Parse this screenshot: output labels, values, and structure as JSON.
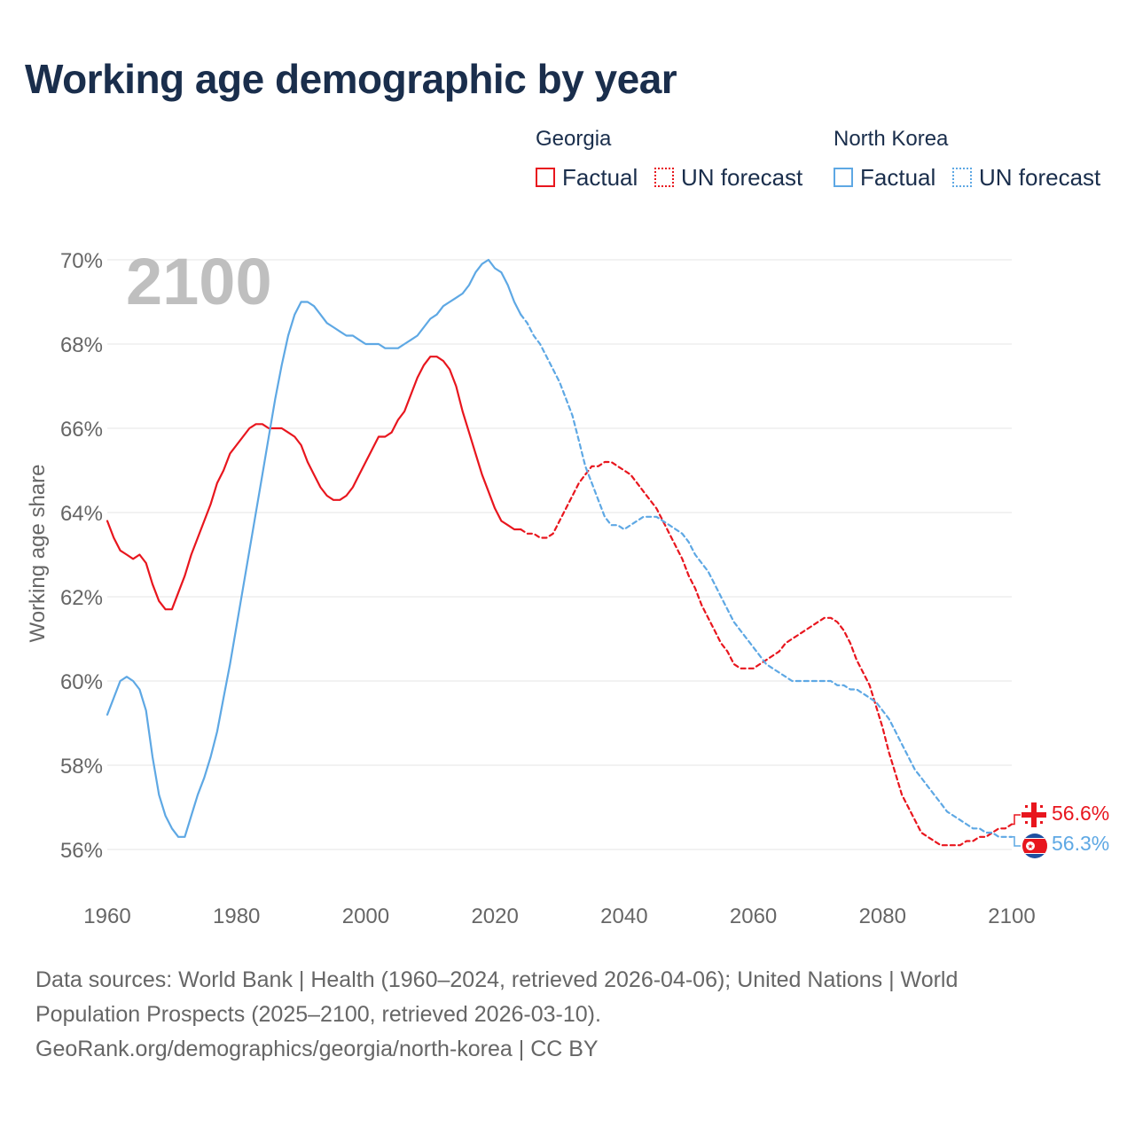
{
  "title": "Working age demographic by year",
  "legend": {
    "georgia": {
      "country": "Georgia",
      "factual": "Factual",
      "forecast": "UN forecast",
      "color": "#e8161e"
    },
    "north_korea": {
      "country": "North Korea",
      "factual": "Factual",
      "forecast": "UN forecast",
      "color": "#5ea8e4"
    }
  },
  "year_watermark": "2100",
  "footer": {
    "line1": "Data sources: World Bank | Health (1960–2024, retrieved 2026-04-06); United Nations | World",
    "line2": "Population Prospects (2025–2100, retrieved 2026-03-10).",
    "line3": "GeoRank.org/demographics/georgia/north-korea | CC BY"
  },
  "chart_data": {
    "type": "line",
    "title": "Working age demographic by year",
    "xlabel": "",
    "ylabel": "Working age share",
    "xlim": [
      1960,
      2100
    ],
    "ylim": [
      55,
      70
    ],
    "x_ticks": [
      1960,
      1980,
      2000,
      2020,
      2040,
      2060,
      2080,
      2100
    ],
    "y_ticks": [
      56,
      58,
      60,
      62,
      64,
      66,
      68,
      70
    ],
    "y_tick_labels": [
      "56%",
      "58%",
      "60%",
      "62%",
      "64%",
      "66%",
      "68%",
      "70%"
    ],
    "grid": true,
    "series": [
      {
        "name": "Georgia",
        "color": "#e8161e",
        "end_label": "56.6%",
        "factual": [
          [
            1960,
            63.8
          ],
          [
            1961,
            63.4
          ],
          [
            1962,
            63.1
          ],
          [
            1963,
            63.0
          ],
          [
            1964,
            62.9
          ],
          [
            1965,
            63.0
          ],
          [
            1966,
            62.8
          ],
          [
            1967,
            62.3
          ],
          [
            1968,
            61.9
          ],
          [
            1969,
            61.7
          ],
          [
            1970,
            61.7
          ],
          [
            1971,
            62.1
          ],
          [
            1972,
            62.5
          ],
          [
            1973,
            63.0
          ],
          [
            1974,
            63.4
          ],
          [
            1975,
            63.8
          ],
          [
            1976,
            64.2
          ],
          [
            1977,
            64.7
          ],
          [
            1978,
            65.0
          ],
          [
            1979,
            65.4
          ],
          [
            1980,
            65.6
          ],
          [
            1981,
            65.8
          ],
          [
            1982,
            66.0
          ],
          [
            1983,
            66.1
          ],
          [
            1984,
            66.1
          ],
          [
            1985,
            66.0
          ],
          [
            1986,
            66.0
          ],
          [
            1987,
            66.0
          ],
          [
            1988,
            65.9
          ],
          [
            1989,
            65.8
          ],
          [
            1990,
            65.6
          ],
          [
            1991,
            65.2
          ],
          [
            1992,
            64.9
          ],
          [
            1993,
            64.6
          ],
          [
            1994,
            64.4
          ],
          [
            1995,
            64.3
          ],
          [
            1996,
            64.3
          ],
          [
            1997,
            64.4
          ],
          [
            1998,
            64.6
          ],
          [
            1999,
            64.9
          ],
          [
            2000,
            65.2
          ],
          [
            2001,
            65.5
          ],
          [
            2002,
            65.8
          ],
          [
            2003,
            65.8
          ],
          [
            2004,
            65.9
          ],
          [
            2005,
            66.2
          ],
          [
            2006,
            66.4
          ],
          [
            2007,
            66.8
          ],
          [
            2008,
            67.2
          ],
          [
            2009,
            67.5
          ],
          [
            2010,
            67.7
          ],
          [
            2011,
            67.7
          ],
          [
            2012,
            67.6
          ],
          [
            2013,
            67.4
          ],
          [
            2014,
            67.0
          ],
          [
            2015,
            66.4
          ],
          [
            2016,
            65.9
          ],
          [
            2017,
            65.4
          ],
          [
            2018,
            64.9
          ],
          [
            2019,
            64.5
          ],
          [
            2020,
            64.1
          ],
          [
            2021,
            63.8
          ],
          [
            2022,
            63.7
          ],
          [
            2023,
            63.6
          ],
          [
            2024,
            63.6
          ]
        ],
        "forecast": [
          [
            2024,
            63.6
          ],
          [
            2025,
            63.5
          ],
          [
            2026,
            63.5
          ],
          [
            2027,
            63.4
          ],
          [
            2028,
            63.4
          ],
          [
            2029,
            63.5
          ],
          [
            2030,
            63.8
          ],
          [
            2031,
            64.1
          ],
          [
            2032,
            64.4
          ],
          [
            2033,
            64.7
          ],
          [
            2034,
            64.9
          ],
          [
            2035,
            65.1
          ],
          [
            2036,
            65.1
          ],
          [
            2037,
            65.2
          ],
          [
            2038,
            65.2
          ],
          [
            2039,
            65.1
          ],
          [
            2040,
            65.0
          ],
          [
            2041,
            64.9
          ],
          [
            2042,
            64.7
          ],
          [
            2043,
            64.5
          ],
          [
            2044,
            64.3
          ],
          [
            2045,
            64.1
          ],
          [
            2046,
            63.8
          ],
          [
            2047,
            63.5
          ],
          [
            2048,
            63.2
          ],
          [
            2049,
            62.9
          ],
          [
            2050,
            62.5
          ],
          [
            2051,
            62.2
          ],
          [
            2052,
            61.8
          ],
          [
            2053,
            61.5
          ],
          [
            2054,
            61.2
          ],
          [
            2055,
            60.9
          ],
          [
            2056,
            60.7
          ],
          [
            2057,
            60.4
          ],
          [
            2058,
            60.3
          ],
          [
            2059,
            60.3
          ],
          [
            2060,
            60.3
          ],
          [
            2061,
            60.4
          ],
          [
            2062,
            60.5
          ],
          [
            2063,
            60.6
          ],
          [
            2064,
            60.7
          ],
          [
            2065,
            60.9
          ],
          [
            2066,
            61.0
          ],
          [
            2067,
            61.1
          ],
          [
            2068,
            61.2
          ],
          [
            2069,
            61.3
          ],
          [
            2070,
            61.4
          ],
          [
            2071,
            61.5
          ],
          [
            2072,
            61.5
          ],
          [
            2073,
            61.4
          ],
          [
            2074,
            61.2
          ],
          [
            2075,
            60.9
          ],
          [
            2076,
            60.5
          ],
          [
            2077,
            60.2
          ],
          [
            2078,
            59.9
          ],
          [
            2079,
            59.4
          ],
          [
            2080,
            58.9
          ],
          [
            2081,
            58.3
          ],
          [
            2082,
            57.8
          ],
          [
            2083,
            57.3
          ],
          [
            2084,
            57.0
          ],
          [
            2085,
            56.7
          ],
          [
            2086,
            56.4
          ],
          [
            2087,
            56.3
          ],
          [
            2088,
            56.2
          ],
          [
            2089,
            56.1
          ],
          [
            2090,
            56.1
          ],
          [
            2091,
            56.1
          ],
          [
            2092,
            56.1
          ],
          [
            2093,
            56.2
          ],
          [
            2094,
            56.2
          ],
          [
            2095,
            56.3
          ],
          [
            2096,
            56.3
          ],
          [
            2097,
            56.4
          ],
          [
            2098,
            56.5
          ],
          [
            2099,
            56.5
          ],
          [
            2100,
            56.6
          ]
        ]
      },
      {
        "name": "North Korea",
        "color": "#5ea8e4",
        "end_label": "56.3%",
        "factual": [
          [
            1960,
            59.2
          ],
          [
            1961,
            59.6
          ],
          [
            1962,
            60.0
          ],
          [
            1963,
            60.1
          ],
          [
            1964,
            60.0
          ],
          [
            1965,
            59.8
          ],
          [
            1966,
            59.3
          ],
          [
            1967,
            58.2
          ],
          [
            1968,
            57.3
          ],
          [
            1969,
            56.8
          ],
          [
            1970,
            56.5
          ],
          [
            1971,
            56.3
          ],
          [
            1972,
            56.3
          ],
          [
            1973,
            56.8
          ],
          [
            1974,
            57.3
          ],
          [
            1975,
            57.7
          ],
          [
            1976,
            58.2
          ],
          [
            1977,
            58.8
          ],
          [
            1978,
            59.6
          ],
          [
            1979,
            60.4
          ],
          [
            1980,
            61.3
          ],
          [
            1981,
            62.2
          ],
          [
            1982,
            63.1
          ],
          [
            1983,
            64.0
          ],
          [
            1984,
            64.9
          ],
          [
            1985,
            65.8
          ],
          [
            1986,
            66.7
          ],
          [
            1987,
            67.5
          ],
          [
            1988,
            68.2
          ],
          [
            1989,
            68.7
          ],
          [
            1990,
            69.0
          ],
          [
            1991,
            69.0
          ],
          [
            1992,
            68.9
          ],
          [
            1993,
            68.7
          ],
          [
            1994,
            68.5
          ],
          [
            1995,
            68.4
          ],
          [
            1996,
            68.3
          ],
          [
            1997,
            68.2
          ],
          [
            1998,
            68.2
          ],
          [
            1999,
            68.1
          ],
          [
            2000,
            68.0
          ],
          [
            2001,
            68.0
          ],
          [
            2002,
            68.0
          ],
          [
            2003,
            67.9
          ],
          [
            2004,
            67.9
          ],
          [
            2005,
            67.9
          ],
          [
            2006,
            68.0
          ],
          [
            2007,
            68.1
          ],
          [
            2008,
            68.2
          ],
          [
            2009,
            68.4
          ],
          [
            2010,
            68.6
          ],
          [
            2011,
            68.7
          ],
          [
            2012,
            68.9
          ],
          [
            2013,
            69.0
          ],
          [
            2014,
            69.1
          ],
          [
            2015,
            69.2
          ],
          [
            2016,
            69.4
          ],
          [
            2017,
            69.7
          ],
          [
            2018,
            69.9
          ],
          [
            2019,
            70.0
          ],
          [
            2020,
            69.8
          ],
          [
            2021,
            69.7
          ],
          [
            2022,
            69.4
          ],
          [
            2023,
            69.0
          ],
          [
            2024,
            68.7
          ]
        ],
        "forecast": [
          [
            2024,
            68.7
          ],
          [
            2025,
            68.5
          ],
          [
            2026,
            68.2
          ],
          [
            2027,
            68.0
          ],
          [
            2028,
            67.7
          ],
          [
            2029,
            67.4
          ],
          [
            2030,
            67.1
          ],
          [
            2031,
            66.7
          ],
          [
            2032,
            66.3
          ],
          [
            2033,
            65.7
          ],
          [
            2034,
            65.1
          ],
          [
            2035,
            64.7
          ],
          [
            2036,
            64.3
          ],
          [
            2037,
            63.9
          ],
          [
            2038,
            63.7
          ],
          [
            2039,
            63.7
          ],
          [
            2040,
            63.6
          ],
          [
            2041,
            63.7
          ],
          [
            2042,
            63.8
          ],
          [
            2043,
            63.9
          ],
          [
            2044,
            63.9
          ],
          [
            2045,
            63.9
          ],
          [
            2046,
            63.8
          ],
          [
            2047,
            63.7
          ],
          [
            2048,
            63.6
          ],
          [
            2049,
            63.5
          ],
          [
            2050,
            63.3
          ],
          [
            2051,
            63.0
          ],
          [
            2052,
            62.8
          ],
          [
            2053,
            62.6
          ],
          [
            2054,
            62.3
          ],
          [
            2055,
            62.0
          ],
          [
            2056,
            61.7
          ],
          [
            2057,
            61.4
          ],
          [
            2058,
            61.2
          ],
          [
            2059,
            61.0
          ],
          [
            2060,
            60.8
          ],
          [
            2061,
            60.6
          ],
          [
            2062,
            60.4
          ],
          [
            2063,
            60.3
          ],
          [
            2064,
            60.2
          ],
          [
            2065,
            60.1
          ],
          [
            2066,
            60.0
          ],
          [
            2067,
            60.0
          ],
          [
            2068,
            60.0
          ],
          [
            2069,
            60.0
          ],
          [
            2070,
            60.0
          ],
          [
            2071,
            60.0
          ],
          [
            2072,
            60.0
          ],
          [
            2073,
            59.9
          ],
          [
            2074,
            59.9
          ],
          [
            2075,
            59.8
          ],
          [
            2076,
            59.8
          ],
          [
            2077,
            59.7
          ],
          [
            2078,
            59.6
          ],
          [
            2079,
            59.5
          ],
          [
            2080,
            59.3
          ],
          [
            2081,
            59.1
          ],
          [
            2082,
            58.8
          ],
          [
            2083,
            58.5
          ],
          [
            2084,
            58.2
          ],
          [
            2085,
            57.9
          ],
          [
            2086,
            57.7
          ],
          [
            2087,
            57.5
          ],
          [
            2088,
            57.3
          ],
          [
            2089,
            57.1
          ],
          [
            2090,
            56.9
          ],
          [
            2091,
            56.8
          ],
          [
            2092,
            56.7
          ],
          [
            2093,
            56.6
          ],
          [
            2094,
            56.5
          ],
          [
            2095,
            56.5
          ],
          [
            2096,
            56.4
          ],
          [
            2097,
            56.4
          ],
          [
            2098,
            56.3
          ],
          [
            2099,
            56.3
          ],
          [
            2100,
            56.3
          ]
        ]
      }
    ]
  }
}
